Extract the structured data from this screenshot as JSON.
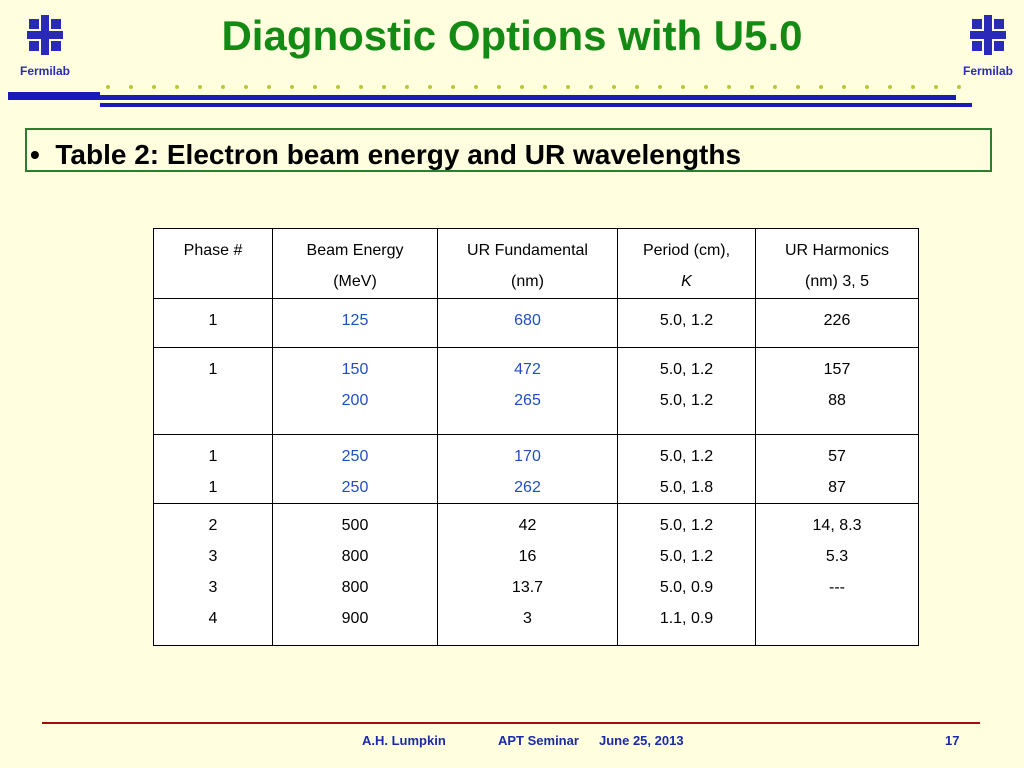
{
  "header": {
    "title": "Diagnostic Options with U5.0",
    "logo_left": "Fermilab",
    "logo_right": "Fermilab"
  },
  "bullet": "Table 2: Electron beam energy and UR wavelengths",
  "table": {
    "header": [
      [
        "Phase #"
      ],
      [
        "Beam Energy",
        "(MeV)"
      ],
      [
        "UR Fundamental",
        "(nm)"
      ],
      [
        "Period (cm),",
        "K"
      ],
      [
        "UR Harmonics",
        "(nm) 3, 5"
      ]
    ],
    "rows": [
      [
        [
          "1"
        ],
        [
          "125"
        ],
        [
          "680"
        ],
        [
          "5.0, 1.2"
        ],
        [
          "226"
        ]
      ],
      [
        [
          "1"
        ],
        [
          "150",
          "200"
        ],
        [
          "472",
          "265"
        ],
        [
          "5.0, 1.2",
          "5.0, 1.2"
        ],
        [
          "157",
          "88"
        ]
      ],
      [
        [
          "1",
          "1"
        ],
        [
          "250",
          "250"
        ],
        [
          "170",
          "262"
        ],
        [
          "5.0, 1.2",
          "5.0, 1.8"
        ],
        [
          "57",
          "87"
        ]
      ],
      [
        [
          "2",
          "3",
          "3",
          "4"
        ],
        [
          "500",
          "800",
          "800",
          "900"
        ],
        [
          "42",
          "16",
          "13.7",
          "3"
        ],
        [
          "5.0, 1.2",
          "5.0, 1.2",
          "5.0, 0.9",
          "1.1, 0.9"
        ],
        [
          "14, 8.3",
          "5.3",
          "---"
        ]
      ]
    ]
  },
  "footer": {
    "author": "A.H. Lumpkin",
    "event": "APT Seminar",
    "date": "June 25, 2013",
    "page": "17"
  }
}
